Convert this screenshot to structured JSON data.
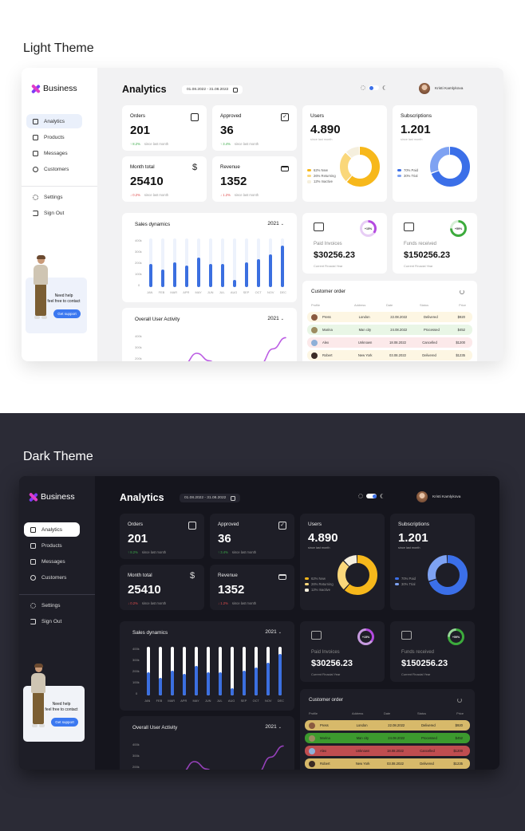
{
  "sections": {
    "light_title": "Light Theme",
    "dark_title": "Dark Theme"
  },
  "app": {
    "brand": "Business",
    "page_title": "Analytics",
    "date_range": "01.08.2022 - 31.08.2022",
    "user_name": "Kristi Kamlykova"
  },
  "sidebar": {
    "items": [
      {
        "label": "Analytics",
        "icon": "grid-icon",
        "active": true
      },
      {
        "label": "Products",
        "icon": "box-icon"
      },
      {
        "label": "Messages",
        "icon": "mail-icon"
      },
      {
        "label": "Customers",
        "icon": "user-icon"
      }
    ],
    "bottom_items": [
      {
        "label": "Settings",
        "icon": "gear-icon"
      },
      {
        "label": "Sign Out",
        "icon": "sign-out-icon"
      }
    ],
    "support": {
      "line1": "Need help",
      "line2": "feel free to contact",
      "button": "Get support"
    }
  },
  "stats": [
    {
      "label": "Orders",
      "value": "201",
      "delta": "↑ 8.2%",
      "dir": "up",
      "since": "since last month",
      "icon": "square-icon"
    },
    {
      "label": "Approved",
      "value": "36",
      "delta": "↑ 3.4%",
      "dir": "up",
      "since": "since last month",
      "icon": "checkbox-icon"
    },
    {
      "label": "Month total",
      "value": "25410",
      "delta": "↓ 0.2%",
      "dir": "down",
      "since": "since last month",
      "icon": "dollar-icon"
    },
    {
      "label": "Revenue",
      "value": "1352",
      "delta": "↓ 1.2%",
      "dir": "down",
      "since": "since last month",
      "icon": "credit-card-icon"
    }
  ],
  "users": {
    "label": "Users",
    "value": "4.890",
    "since": "since last month",
    "legend": [
      {
        "label": "62% New",
        "color": "#f7b81b",
        "pct": 62
      },
      {
        "label": "26% Returning",
        "color": "#fad77a",
        "pct": 26
      },
      {
        "label": "12% Inactive",
        "color": "#f5efdd",
        "pct": 12
      }
    ]
  },
  "subscriptions": {
    "label": "Subscriptions",
    "value": "1.201",
    "since": "since last month",
    "legend": [
      {
        "label": "70% Paid",
        "color": "#3b6fe8",
        "pct": 70
      },
      {
        "label": "30% Trial",
        "color": "#7ea2f2",
        "pct": 30
      }
    ]
  },
  "paid_invoices": {
    "label": "Paid Invoices",
    "value": "$30256.23",
    "sub": "Current Finacial Year",
    "badge": "+15%",
    "color": "#b44ae0"
  },
  "funds_received": {
    "label": "Funds received",
    "value": "$150256.23",
    "sub": "Current Finacial Year",
    "badge": "+59%",
    "color": "#3cab3c"
  },
  "sales": {
    "title": "Sales dynamics",
    "year": "2021",
    "y_ticks": [
      "400k",
      "300k",
      "200k",
      "100k",
      "0"
    ]
  },
  "activity": {
    "title": "Overall User Activity",
    "year": "2021",
    "y_ticks": [
      "400k",
      "300k",
      "200k"
    ]
  },
  "orders": {
    "title": "Customer order",
    "columns": [
      "Profile",
      "Address",
      "Date",
      "Status",
      "Price"
    ],
    "rows": [
      {
        "name": "Press",
        "address": "London",
        "date": "22.08.2022",
        "status": "Delivered",
        "price": "$920",
        "light_bg": "#fdf6e3",
        "dark_bg": "#d7b96a"
      },
      {
        "name": "Marina",
        "address": "Man city",
        "date": "24.08.2022",
        "status": "Processed",
        "price": "$452",
        "light_bg": "#e9f6e6",
        "dark_bg": "#3c9a2e"
      },
      {
        "name": "Alex",
        "address": "Unknown",
        "date": "18.08.2022",
        "status": "Cancelled",
        "price": "$1200",
        "light_bg": "#fce9ea",
        "dark_bg": "#c04d50"
      },
      {
        "name": "Robert",
        "address": "New York",
        "date": "03.08.2022",
        "status": "Delivered",
        "price": "$1235",
        "light_bg": "#fdf6e3",
        "dark_bg": "#d7b96a"
      }
    ]
  },
  "chart_data": [
    {
      "type": "bar",
      "title": "Sales dynamics",
      "categories": [
        "JAN",
        "FEB",
        "MAR",
        "APR",
        "MAY",
        "JUN",
        "JUL",
        "AUG",
        "SEP",
        "OCT",
        "NOV",
        "DEC"
      ],
      "values": [
        215000,
        165000,
        230000,
        200000,
        275000,
        215000,
        215000,
        70000,
        230000,
        260000,
        305000,
        385000
      ],
      "ylim": [
        0,
        450000
      ],
      "y_ticks": [
        "0",
        "100k",
        "200k",
        "300k",
        "400k"
      ],
      "color": "#3b6fe0"
    },
    {
      "type": "line",
      "title": "Overall User Activity",
      "x": [
        0,
        1,
        2,
        3,
        4,
        5,
        6,
        7,
        8,
        9,
        10,
        11
      ],
      "values": [
        180000,
        150000,
        230000,
        260000,
        300000,
        290000,
        170000,
        140000,
        230000,
        260000,
        340000,
        440000
      ],
      "ylim": [
        150000,
        450000
      ],
      "y_ticks": [
        "200k",
        "300k",
        "400k"
      ],
      "color": "#b44ae0"
    }
  ],
  "colors": {
    "accent": "#3b6fe8",
    "positive": "#3cab4a",
    "negative": "#e04c4c",
    "light_bg": "#f2f2f3",
    "dark_bg": "#15151d",
    "dark_card": "#1e1e27"
  }
}
